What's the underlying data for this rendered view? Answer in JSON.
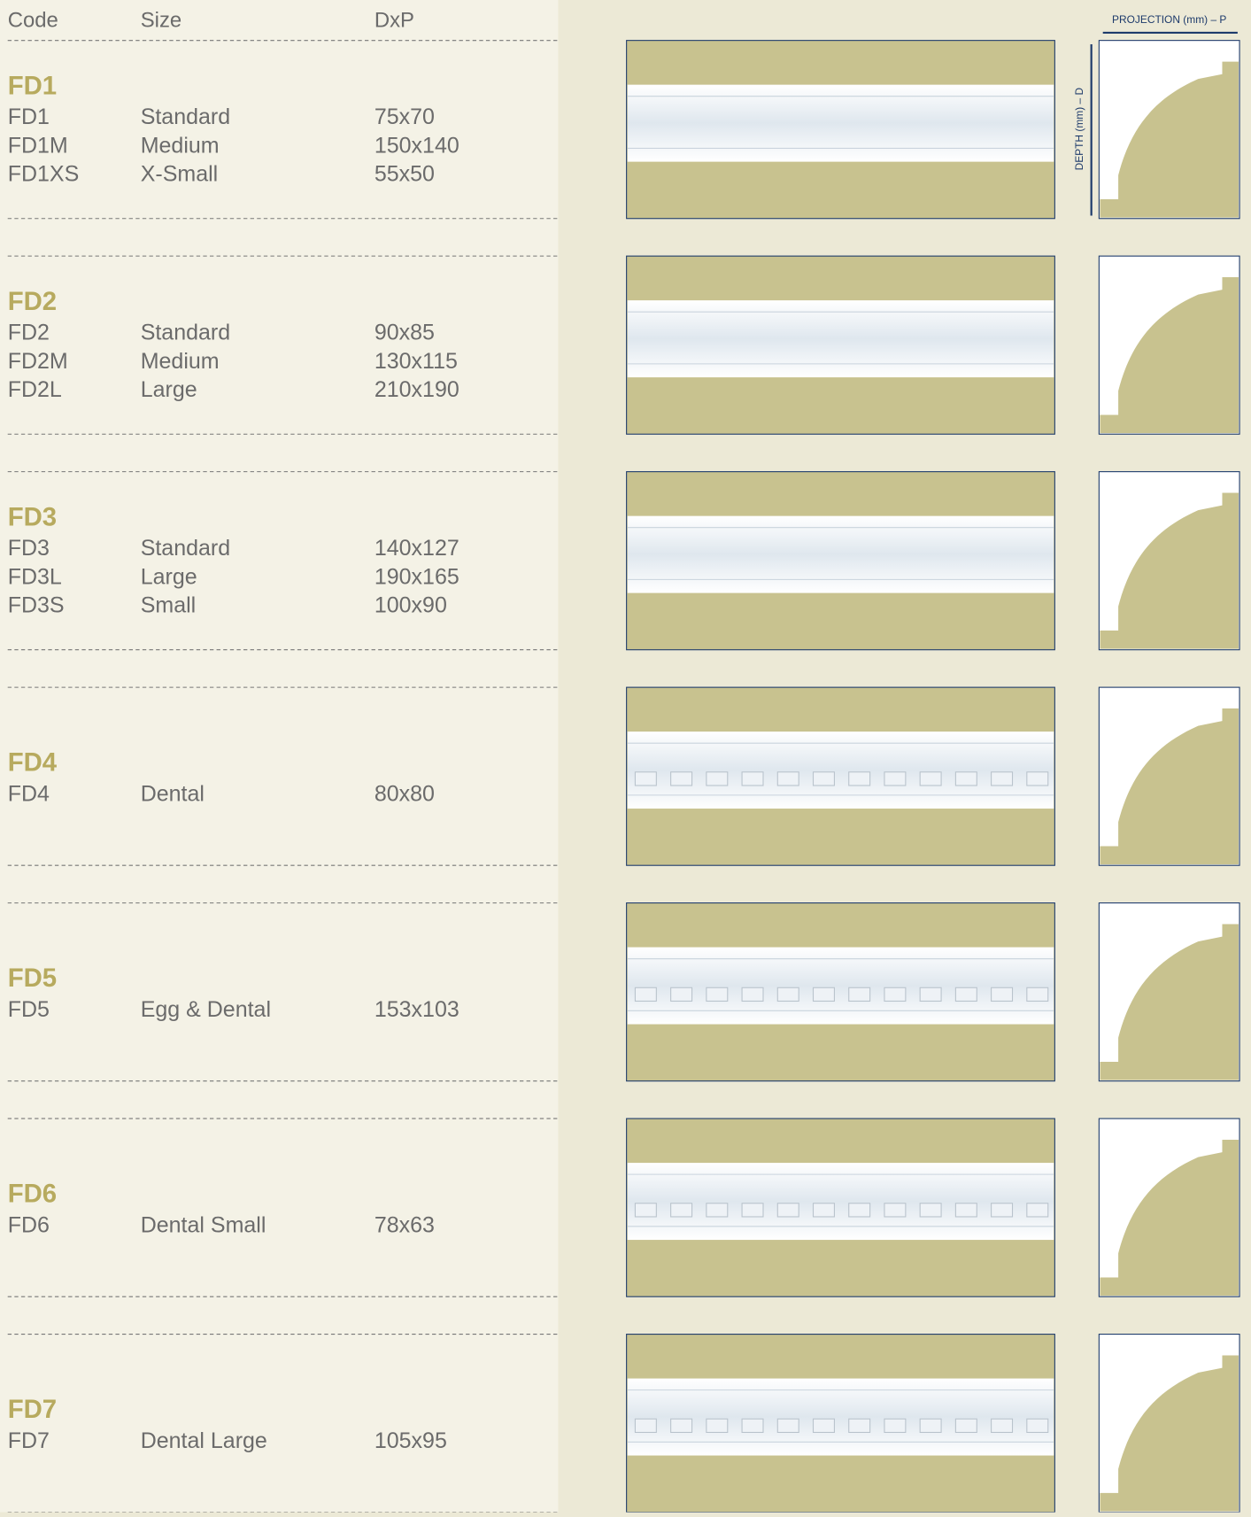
{
  "header": {
    "code": "Code",
    "size": "Size",
    "dxp": "DxP"
  },
  "diagram": {
    "projection": "PROJECTION (mm) – P",
    "depth": "DEPTH (mm) – D"
  },
  "groups": [
    {
      "title": "FD1",
      "rows": [
        [
          "FD1",
          "Standard",
          "75x70"
        ],
        [
          "FD1M",
          "Medium",
          "150x140"
        ],
        [
          "FD1XS",
          "X-Small",
          "55x50"
        ]
      ]
    },
    {
      "title": "FD2",
      "rows": [
        [
          "FD2",
          "Standard",
          "90x85"
        ],
        [
          "FD2M",
          "Medium",
          "130x115"
        ],
        [
          "FD2L",
          "Large",
          "210x190"
        ]
      ]
    },
    {
      "title": "FD3",
      "rows": [
        [
          "FD3",
          "Standard",
          "140x127"
        ],
        [
          "FD3L",
          "Large",
          "190x165"
        ],
        [
          "FD3S",
          "Small",
          "100x90"
        ]
      ]
    },
    {
      "title": "FD4",
      "rows": [
        [
          "FD4",
          "Dental",
          "80x80"
        ]
      ]
    },
    {
      "title": "FD5",
      "rows": [
        [
          "FD5",
          "Egg & Dental",
          "153x103"
        ]
      ]
    },
    {
      "title": "FD6",
      "rows": [
        [
          "FD6",
          "Dental Small",
          "78x63"
        ]
      ]
    },
    {
      "title": "FD7",
      "rows": [
        [
          "FD7",
          "Dental Large",
          "105x95"
        ]
      ]
    }
  ]
}
